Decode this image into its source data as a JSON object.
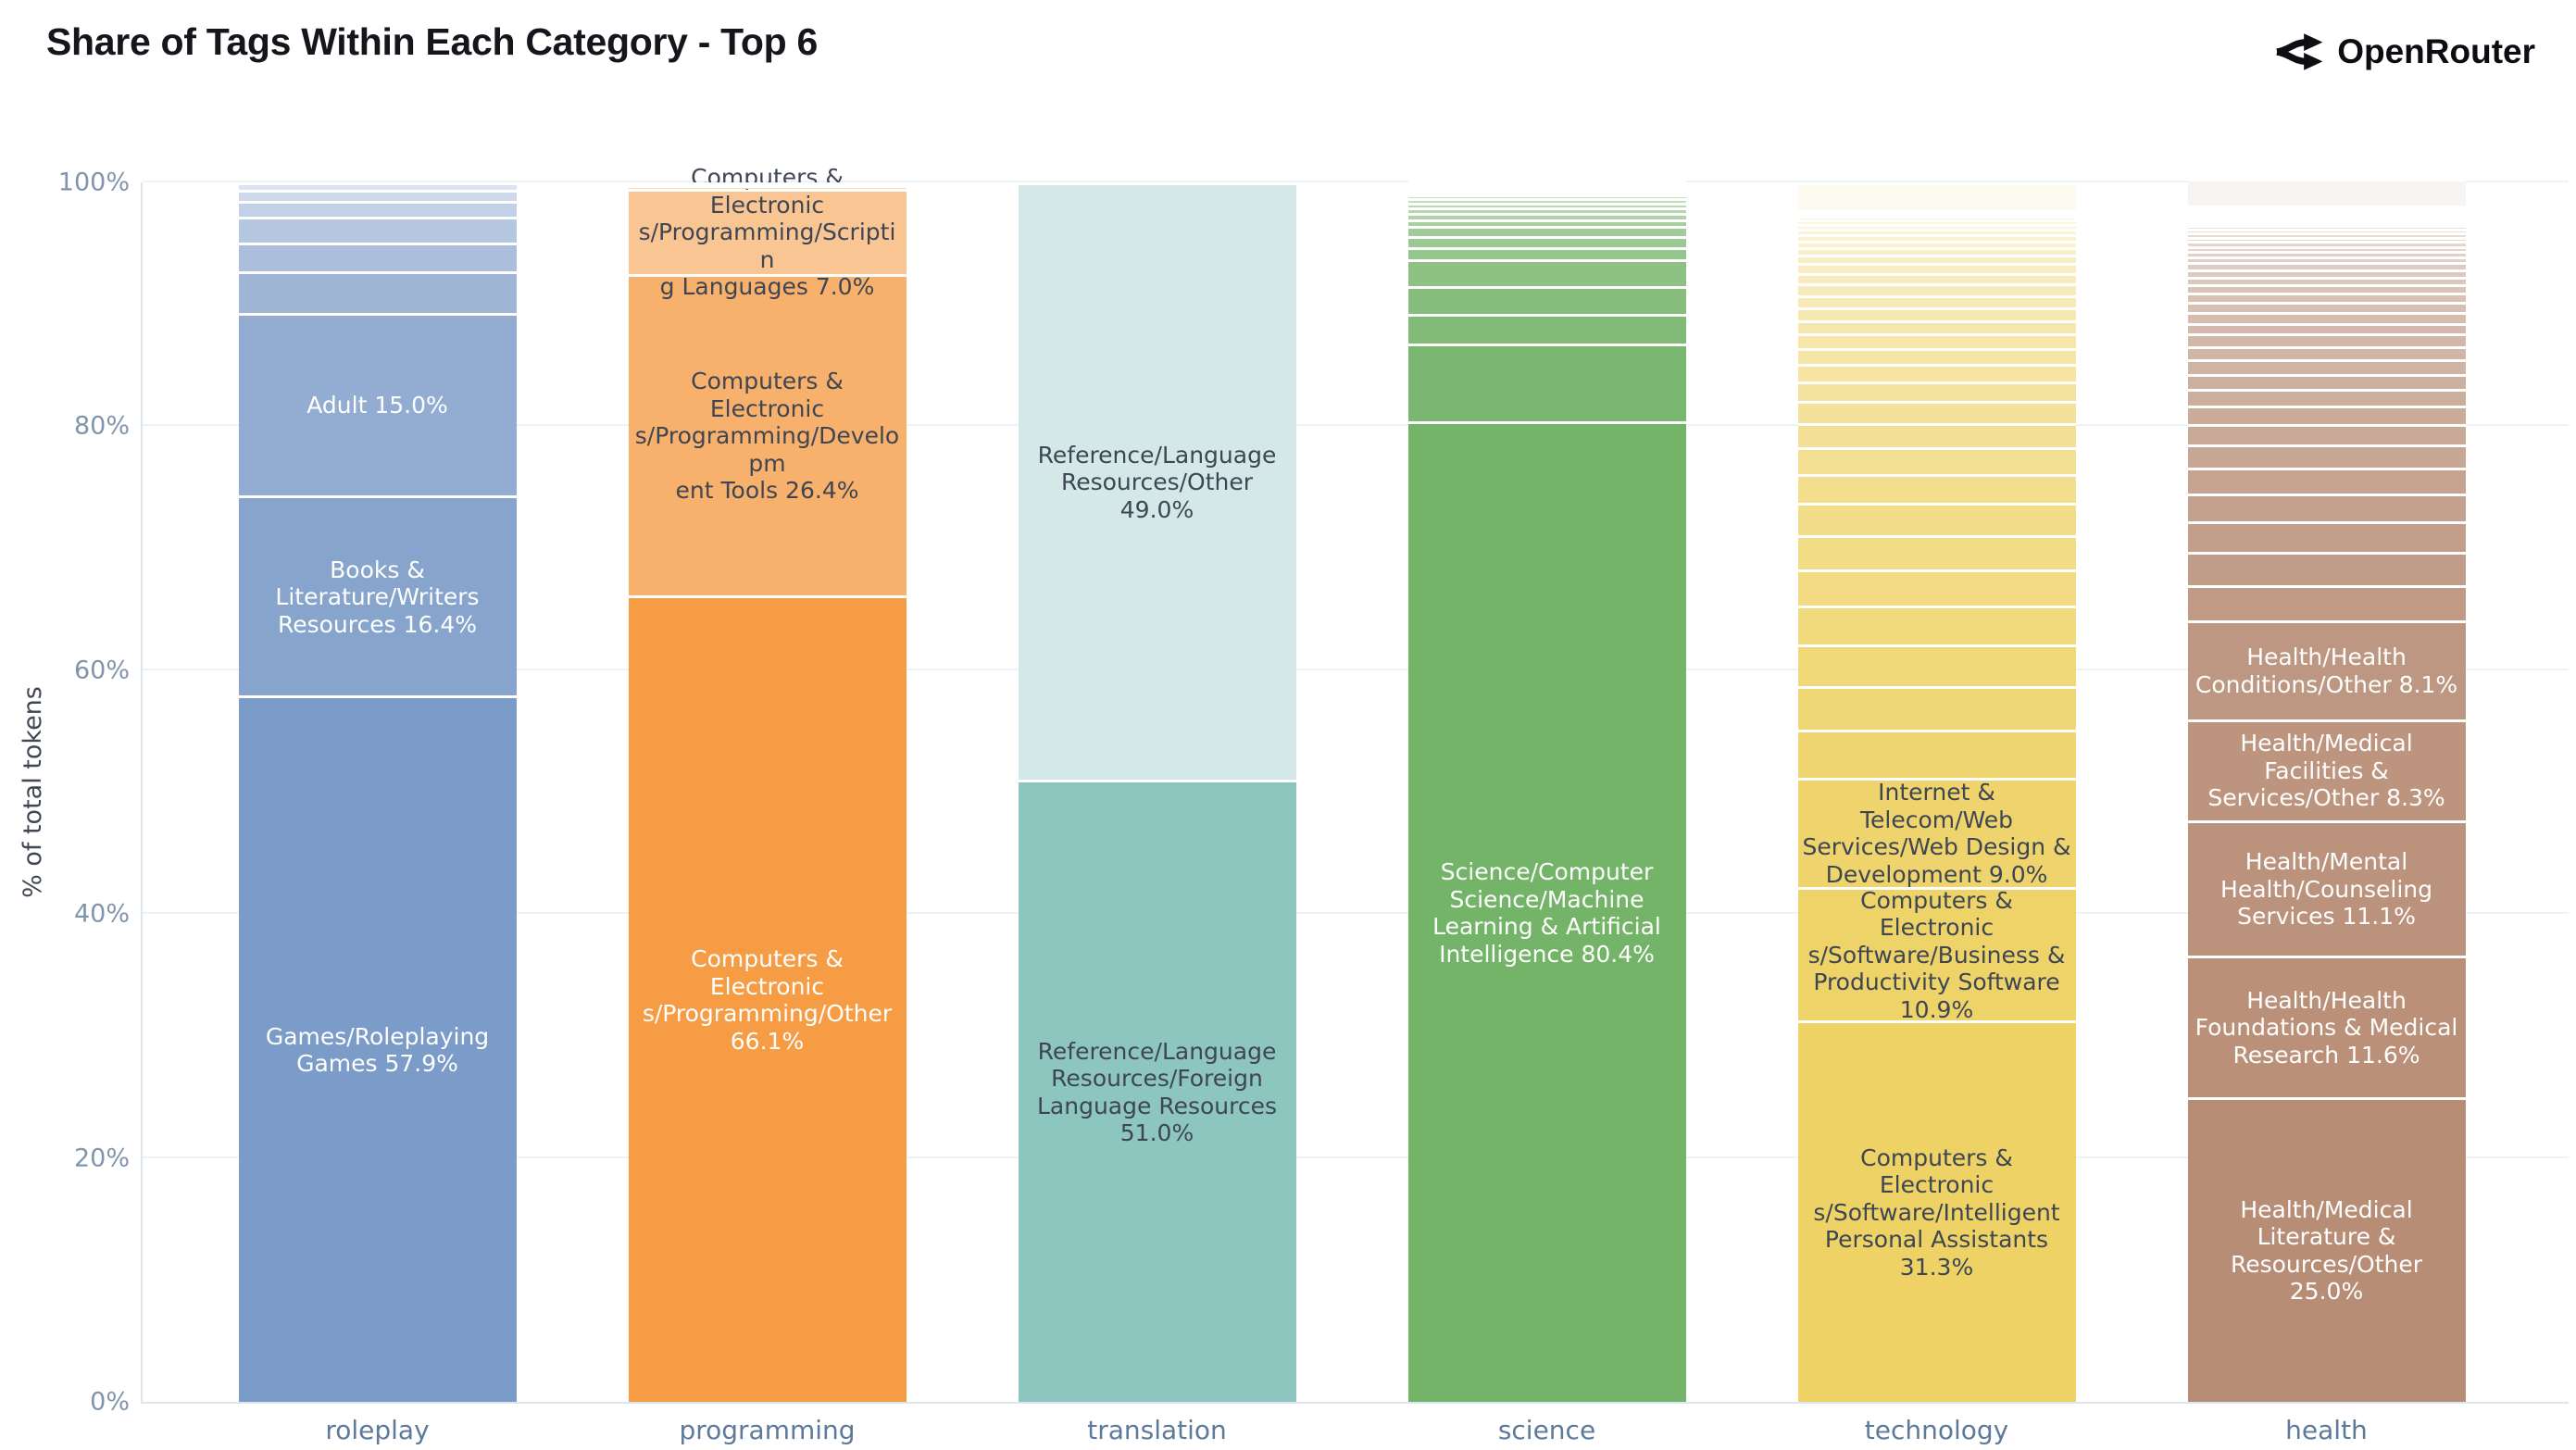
{
  "header": {
    "title": "Share of Tags Within Each Category - Top 6",
    "brand": "OpenRouter"
  },
  "chart_data": {
    "type": "stacked_bar_100",
    "title": "Share of Tags Within Each Category - Top 6",
    "ylabel": "% of total tokens",
    "ylim": [
      0,
      100
    ],
    "grid": "horizontal-faint",
    "legend": "none",
    "axis_text_color": "#8095ac",
    "grid_color": "#eef3f7",
    "yticks": [
      {
        "v": 0,
        "t": "0%"
      },
      {
        "v": 20,
        "t": "20%"
      },
      {
        "v": 40,
        "t": "40%"
      },
      {
        "v": 60,
        "t": "60%"
      },
      {
        "v": 80,
        "t": "80%"
      },
      {
        "v": 100,
        "t": "100%"
      }
    ],
    "categories": [
      "roleplay",
      "programming",
      "translation",
      "science",
      "technology",
      "health"
    ],
    "bars": [
      {
        "category": "roleplay",
        "color": "#7b9bc8",
        "lighten_max": 0.72,
        "segments": [
          {
            "pct": 57.9,
            "label": "Games/Roleplaying\nGames 57.9%",
            "tc": "#ffffff"
          },
          {
            "pct": 16.4,
            "label": "Books &\nLiterature/Writers\nResources 16.4%",
            "tc": "#ffffff"
          },
          {
            "pct": 15.0,
            "label": "Adult 15.0%",
            "tc": "#ffffff"
          },
          {
            "pct": 3.4
          },
          {
            "pct": 2.4
          },
          {
            "pct": 2.1
          },
          {
            "pct": 1.3
          },
          {
            "pct": 0.9
          },
          {
            "pct": 0.6
          }
        ]
      },
      {
        "category": "programming",
        "color": "#f59c44",
        "lighten_max": 0.85,
        "segments": [
          {
            "pct": 66.1,
            "label": "Computers & Electronic\ns/Programming/Other\n66.1%",
            "tc": "#ffffff"
          },
          {
            "pct": 26.4,
            "label": "Computers & Electronic\ns/Programming/Developm\nent Tools 26.4%",
            "tc": "#3e4653"
          },
          {
            "pct": 7.0,
            "label": "Computers & Electronic\ns/Programming/Scriptin\ng Languages 7.0%",
            "tc": "#3e4653"
          },
          {
            "pct": 0.3
          },
          {
            "pct": 0.2
          }
        ]
      },
      {
        "category": "translation",
        "color": "#8dc6bf",
        "lighten_max": 0.62,
        "segments": [
          {
            "pct": 51.0,
            "label": "Reference/Language\nResources/Foreign\nLanguage Resources\n51.0%",
            "tc": "#3e4653"
          },
          {
            "pct": 49.0,
            "label": "Reference/Language\nResources/Other 49.0%",
            "tc": "#3e4653"
          }
        ]
      },
      {
        "category": "science",
        "color": "#74b469",
        "lighten_max": 0.92,
        "segments": [
          {
            "pct": 80.4,
            "label": "Science/Computer\nScience/Machine\nLearning & Artificial\nIntelligence 80.4%",
            "tc": "#ffffff"
          },
          {
            "pct": 6.4
          },
          {
            "pct": 2.4
          },
          {
            "pct": 2.3
          },
          {
            "pct": 2.2
          },
          {
            "pct": 1.0
          },
          {
            "pct": 0.9
          },
          {
            "pct": 0.8
          },
          {
            "pct": 0.6
          },
          {
            "pct": 0.5
          },
          {
            "pct": 0.45
          },
          {
            "pct": 0.4
          },
          {
            "pct": 0.35
          },
          {
            "pct": 0.3
          },
          {
            "pct": 0.25
          },
          {
            "pct": 0.2
          },
          {
            "pct": 0.2
          },
          {
            "pct": 0.15
          },
          {
            "pct": 0.1
          },
          {
            "pct": 0.05
          },
          {
            "pct": 0.05
          }
        ]
      },
      {
        "category": "technology",
        "color": "#eed265",
        "lighten_max": 0.9,
        "segments": [
          {
            "pct": 31.3,
            "label": "Computers & Electronic\ns/Software/Intelligent\nPersonal Assistants\n31.3%",
            "tc": "#3e4653"
          },
          {
            "pct": 10.9,
            "label": "Computers & Electronic\ns/Software/Business &\nProductivity Software\n10.9%",
            "tc": "#3e4653"
          },
          {
            "pct": 9.0,
            "label": "Internet & Telecom/Web\nServices/Web Design &\nDevelopment 9.0%",
            "tc": "#3e4653"
          },
          {
            "pct": 3.9
          },
          {
            "pct": 3.6
          },
          {
            "pct": 3.4
          },
          {
            "pct": 3.2
          },
          {
            "pct": 3.0
          },
          {
            "pct": 2.8
          },
          {
            "pct": 2.6
          },
          {
            "pct": 2.4
          },
          {
            "pct": 2.2
          },
          {
            "pct": 2.0
          },
          {
            "pct": 1.8
          },
          {
            "pct": 1.6
          },
          {
            "pct": 1.4
          },
          {
            "pct": 1.3
          },
          {
            "pct": 1.2
          },
          {
            "pct": 1.1
          },
          {
            "pct": 1.05
          },
          {
            "pct": 1.0
          },
          {
            "pct": 0.95
          },
          {
            "pct": 0.9
          },
          {
            "pct": 0.8
          },
          {
            "pct": 0.7
          },
          {
            "pct": 0.6
          },
          {
            "pct": 0.55
          },
          {
            "pct": 0.5
          },
          {
            "pct": 0.45
          },
          {
            "pct": 0.4
          },
          {
            "pct": 0.35
          },
          {
            "pct": 0.3
          },
          {
            "pct": 0.25
          },
          {
            "pct": 0.2
          },
          {
            "pct": 2.3
          }
        ]
      },
      {
        "category": "health",
        "color": "#b88d76",
        "lighten_max": 0.9,
        "segments": [
          {
            "pct": 25.0,
            "label": "Health/Medical\nLiterature &\nResources/Other 25.0%",
            "tc": "#ffffff"
          },
          {
            "pct": 11.6,
            "label": "Health/Health\nFoundations & Medical\nResearch 11.6%",
            "tc": "#ffffff"
          },
          {
            "pct": 11.1,
            "label": "Health/Mental\nHealth/Counseling\nServices 11.1%",
            "tc": "#ffffff"
          },
          {
            "pct": 8.3,
            "label": "Health/Medical\nFacilities &\nServices/Other 8.3%",
            "tc": "#ffffff"
          },
          {
            "pct": 8.1,
            "label": "Health/Health\nConditions/Other 8.1%",
            "tc": "#ffffff"
          },
          {
            "pct": 2.9
          },
          {
            "pct": 2.7
          },
          {
            "pct": 2.5
          },
          {
            "pct": 2.3
          },
          {
            "pct": 2.1
          },
          {
            "pct": 1.9
          },
          {
            "pct": 1.7
          },
          {
            "pct": 1.5
          },
          {
            "pct": 1.35
          },
          {
            "pct": 1.25
          },
          {
            "pct": 1.2
          },
          {
            "pct": 1.1
          },
          {
            "pct": 1.0
          },
          {
            "pct": 0.9
          },
          {
            "pct": 0.9
          },
          {
            "pct": 0.8
          },
          {
            "pct": 0.75
          },
          {
            "pct": 0.7
          },
          {
            "pct": 0.65
          },
          {
            "pct": 0.6
          },
          {
            "pct": 0.55
          },
          {
            "pct": 0.5
          },
          {
            "pct": 0.45
          },
          {
            "pct": 0.4
          },
          {
            "pct": 0.4
          },
          {
            "pct": 0.35
          },
          {
            "pct": 0.35
          },
          {
            "pct": 0.3
          },
          {
            "pct": 0.3
          },
          {
            "pct": 0.25
          },
          {
            "pct": 0.25
          },
          {
            "pct": 0.2
          },
          {
            "pct": 0.2
          },
          {
            "pct": 0.15
          },
          {
            "pct": 0.15
          },
          {
            "pct": 0.1
          },
          {
            "pct": 2.2
          }
        ]
      }
    ]
  }
}
